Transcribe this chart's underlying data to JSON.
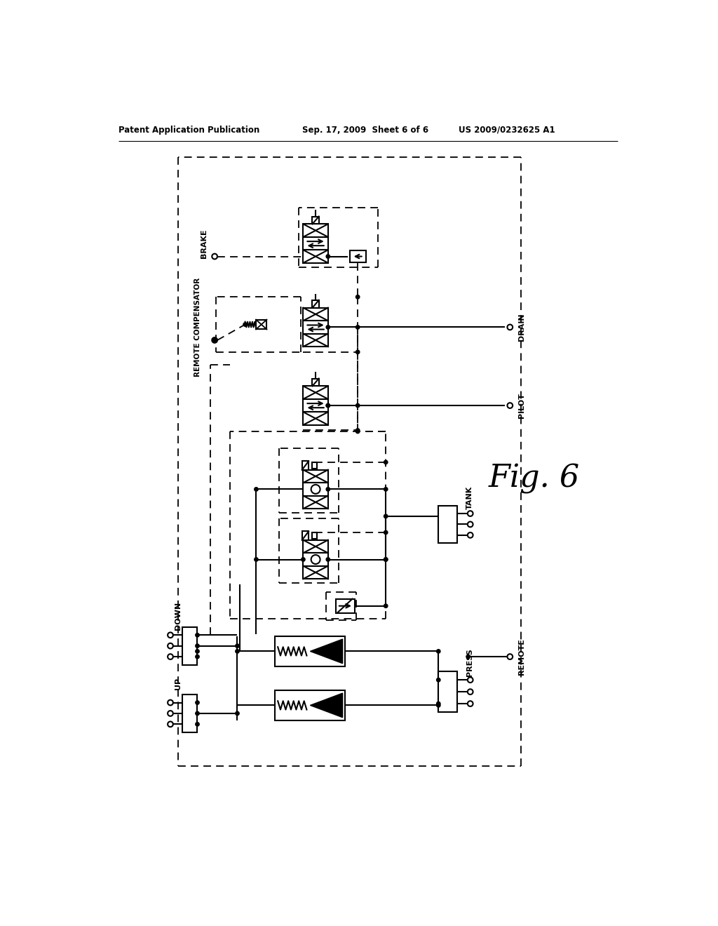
{
  "bg_color": "#ffffff",
  "line_color": "#000000",
  "header_left": "Patent Application Publication",
  "header_mid": "Sep. 17, 2009  Sheet 6 of 6",
  "header_right": "US 2009/0232625 A1",
  "fig_label": "Fig. 6",
  "labels": {
    "brake": "BRAKE",
    "remote_compensator": "REMOTE COMPENSATOR",
    "drain": "DRAIN",
    "pilot": "PILOT",
    "tank": "TANK",
    "down": "DOWN",
    "up": "UP",
    "remote": "REMOTE",
    "press": "PRESS"
  }
}
